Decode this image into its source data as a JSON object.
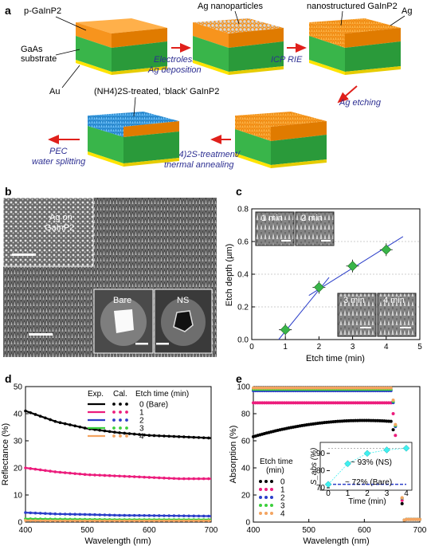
{
  "panel_a": {
    "letter": "a",
    "labels": {
      "p_gainp2": "p-GaInP2",
      "gaas": "GaAs",
      "substrate": "substrate",
      "au": "Au",
      "ag_np": "Ag nanoparticles",
      "nano_gainp2": "nanostructured GaInP2",
      "ag": "Ag",
      "black": "(NH4)2S-treated, ‘black’ GaInP2"
    },
    "steps": {
      "electroless_1": "Electroless",
      "electroless_2": "Ag deposition",
      "icp": "ICP RIE",
      "ag_etch": "Ag etching",
      "nh4_1": "(NH4)2S-treatment/",
      "nh4_2": "thermal annealing",
      "pec_1": "PEC",
      "pec_2": "water splitting"
    },
    "colors": {
      "gainp": "#f7941d",
      "gaas": "#39b54a",
      "au": "#ffe400",
      "blue": "#3fa9f5",
      "arrow": "#e0201b"
    }
  },
  "panel_b": {
    "letter": "b",
    "inset_label_1": "Ag on",
    "inset_label_2": "GaInP2",
    "bare": "Bare",
    "ns": "NS"
  },
  "panel_c": {
    "letter": "c",
    "chart_data": {
      "type": "scatter",
      "x": [
        1,
        2,
        3,
        4
      ],
      "y": [
        0.06,
        0.32,
        0.45,
        0.55
      ],
      "xlabel": "Etch time (min)",
      "ylabel": "Etch depth (µm)",
      "xlim": [
        0,
        5
      ],
      "ylim": [
        0,
        0.8
      ],
      "xticks": [
        "0",
        "1",
        "2",
        "3",
        "4",
        "5"
      ],
      "yticks": [
        "0.0",
        "0.2",
        "0.4",
        "0.6",
        "0.8"
      ],
      "fit_line_1": [
        [
          0.8,
          0.0
        ],
        [
          2.3,
          0.38
        ]
      ],
      "fit_line_2": [
        [
          1.7,
          0.27
        ],
        [
          4.5,
          0.63
        ]
      ],
      "inset_labels": [
        "1 min",
        "2 min",
        "3 min",
        "4 min"
      ],
      "marker_color": "#39b54a",
      "line_color": "#2b3ec9"
    }
  },
  "panel_d": {
    "letter": "d",
    "chart_data": {
      "type": "line",
      "xlabel": "Wavelength (nm)",
      "ylabel": "Reflectance (%)",
      "xlim": [
        400,
        700
      ],
      "ylim": [
        0,
        50
      ],
      "xticks": [
        "400",
        "500",
        "600",
        "700"
      ],
      "yticks": [
        "0",
        "10",
        "20",
        "30",
        "40",
        "50"
      ],
      "legend_header": [
        "Exp.",
        "Cal.",
        "Etch time (min)"
      ],
      "series": [
        {
          "name": "0 (Bare)",
          "color": "#000000",
          "x": [
            400,
            450,
            500,
            550,
            600,
            650,
            700
          ],
          "values": [
            41,
            37,
            34.5,
            33,
            32,
            31.5,
            31
          ]
        },
        {
          "name": "1",
          "color": "#ec1c7c",
          "x": [
            400,
            450,
            500,
            550,
            600,
            650,
            700
          ],
          "values": [
            20,
            18.5,
            17.5,
            17,
            16.5,
            16,
            16
          ]
        },
        {
          "name": "2",
          "color": "#2b3ec9",
          "x": [
            400,
            450,
            500,
            550,
            600,
            650,
            700
          ],
          "values": [
            3.5,
            3,
            2.8,
            2.5,
            2.4,
            2.3,
            2.2
          ]
        },
        {
          "name": "3",
          "color": "#3ccf3c",
          "x": [
            400,
            450,
            500,
            550,
            600,
            650,
            700
          ],
          "values": [
            1.2,
            1.1,
            1,
            0.9,
            0.9,
            0.9,
            0.9
          ]
        },
        {
          "name": "4",
          "color": "#f4a460",
          "x": [
            400,
            450,
            500,
            550,
            600,
            650,
            700
          ],
          "values": [
            0.6,
            0.5,
            0.5,
            0.5,
            0.5,
            0.5,
            0.5
          ]
        }
      ]
    }
  },
  "panel_e": {
    "letter": "e",
    "chart_data": {
      "type": "scatter",
      "xlabel": "Wavelength (nm)",
      "ylabel": "Absorption (%)",
      "xlim": [
        400,
        700
      ],
      "ylim": [
        0,
        100
      ],
      "xticks": [
        "400",
        "500",
        "600",
        "700"
      ],
      "yticks": [
        "0",
        "20",
        "40",
        "60",
        "80",
        "100"
      ],
      "legend_title_1": "Etch time",
      "legend_title_2": "(min)",
      "series": [
        {
          "name": "0",
          "color": "#000000",
          "plateau": 75
        },
        {
          "name": "1",
          "color": "#ec1c7c",
          "plateau": 88
        },
        {
          "name": "2",
          "color": "#2b3ec9",
          "plateau": 97
        },
        {
          "name": "3",
          "color": "#3ccf3c",
          "plateau": 98
        },
        {
          "name": "4",
          "color": "#f4a460",
          "plateau": 99
        }
      ],
      "inset": {
        "xlabel": "Time (min)",
        "ylabel": "S_abs (%)",
        "xticks": [
          "0",
          "1",
          "2",
          "3",
          "4"
        ],
        "yticks": [
          "70",
          "80",
          "90"
        ],
        "x": [
          0,
          1,
          2,
          3,
          4
        ],
        "y": [
          72,
          84,
          90,
          92,
          93
        ],
        "note_ns": "~ 93% (NS)",
        "note_bare": "~ 72% (Bare)",
        "marker_color": "#3ff0f0"
      }
    }
  }
}
